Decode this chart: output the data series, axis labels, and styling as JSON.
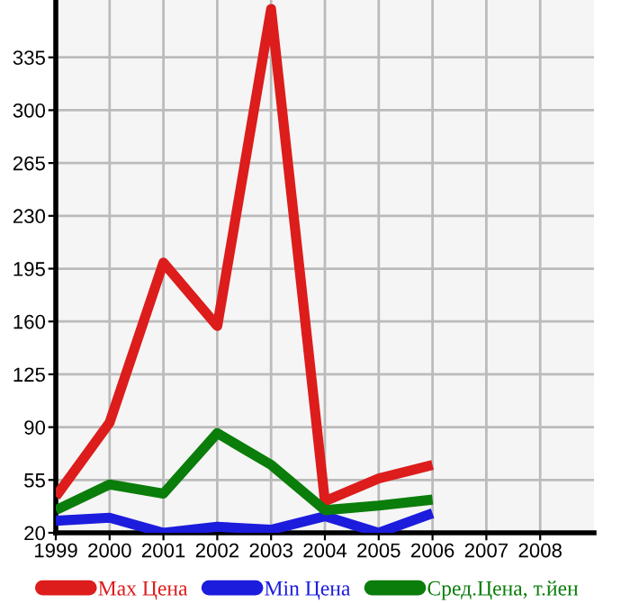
{
  "chart_data": {
    "type": "line",
    "x": [
      1999,
      2000,
      2001,
      2002,
      2003,
      2004,
      2005,
      2006
    ],
    "series": [
      {
        "name": "Max Цена",
        "color": "#dd1c1c",
        "values": [
          44,
          93,
          199,
          157,
          367,
          41,
          56,
          65
        ]
      },
      {
        "name": "Min Цена",
        "color": "#1c1cdd",
        "values": [
          28,
          30,
          20,
          24,
          22,
          31,
          20,
          33
        ]
      },
      {
        "name": "Сред.Цена, т.йен",
        "color": "#0a7d0a",
        "values": [
          35,
          52,
          46,
          86,
          65,
          35,
          38,
          42
        ]
      }
    ],
    "xlim": [
      1999,
      2009
    ],
    "xticks": [
      1999,
      2000,
      2001,
      2002,
      2003,
      2004,
      2005,
      2006,
      2007,
      2008
    ],
    "ylim": [
      20,
      373
    ],
    "yticks": [
      20,
      55,
      90,
      125,
      160,
      195,
      230,
      265,
      300,
      335
    ],
    "grid": true,
    "legend": "bottom",
    "marker": "none",
    "line_style": "solid"
  }
}
